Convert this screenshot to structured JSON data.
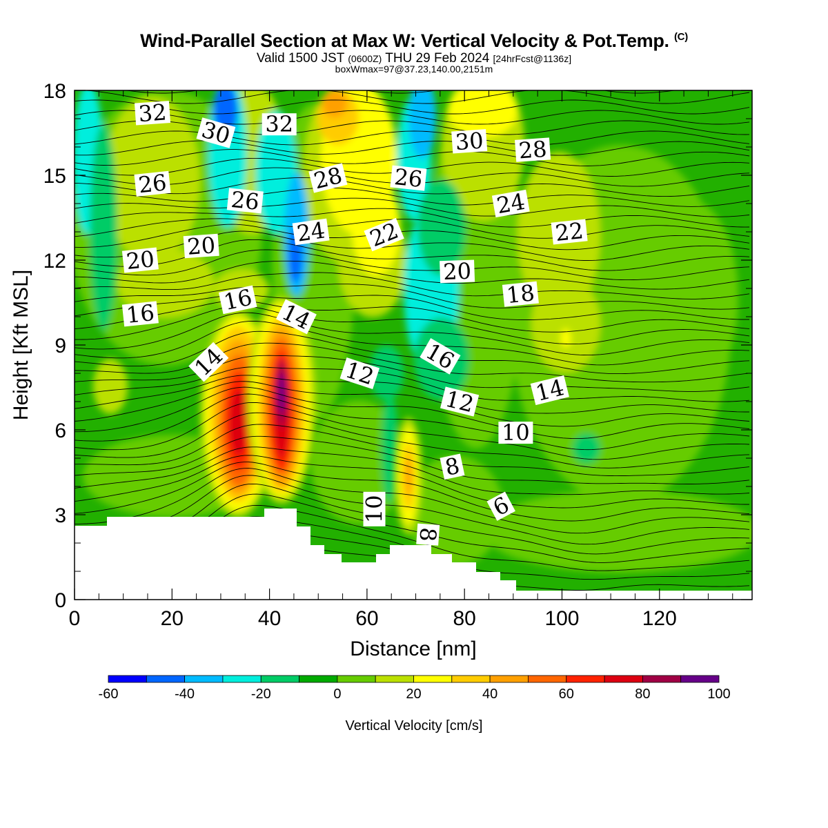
{
  "header": {
    "title": "Wind-Parallel Section at Max W: Vertical Velocity & Pot.Temp.",
    "title_mark": "(C)",
    "valid_prefix": "Valid 1500 JST",
    "valid_utc": "(0600Z)",
    "valid_date": "THU 29 Feb 2024",
    "forecast": "[24hrFcst@1136z]",
    "boxwmax": "boxWmax=97@37.23,140.00,2151m"
  },
  "chart_data": {
    "type": "heatmap",
    "xlabel": "Distance [nm]",
    "ylabel": "Height [Kft MSL]",
    "xlim": [
      0,
      139
    ],
    "ylim": [
      0,
      18
    ],
    "x_ticks": [
      0,
      20,
      40,
      60,
      80,
      100,
      120
    ],
    "y_ticks": [
      0,
      3,
      6,
      9,
      12,
      15,
      18
    ],
    "grid": false,
    "colorbar": {
      "label": "Vertical Velocity [cm/s]",
      "placement": "bottom",
      "tick_labels": [
        "-60",
        "-40",
        "-20",
        "0",
        "20",
        "40",
        "60",
        "80",
        "100"
      ],
      "levels": [
        -60,
        -50,
        -40,
        -30,
        -20,
        -10,
        0,
        10,
        20,
        30,
        40,
        50,
        60,
        70,
        80,
        90,
        100
      ],
      "colors": [
        "#0000ff",
        "#0066ff",
        "#00bbff",
        "#00eedd",
        "#00cc66",
        "#00aa00",
        "#66cc00",
        "#bbe000",
        "#ffff00",
        "#ffcc00",
        "#ffa000",
        "#ff6600",
        "#ff2200",
        "#dd0011",
        "#a00044",
        "#660088"
      ]
    },
    "theta_labels": [
      {
        "text": "32",
        "x": 16,
        "y": 17.2,
        "angle": -4
      },
      {
        "text": "30",
        "x": 29,
        "y": 16.5,
        "angle": 16
      },
      {
        "text": "32",
        "x": 42,
        "y": 16.8,
        "angle": 0
      },
      {
        "text": "30",
        "x": 81,
        "y": 16.2,
        "angle": -4
      },
      {
        "text": "28",
        "x": 94,
        "y": 15.9,
        "angle": -4
      },
      {
        "text": "26",
        "x": 16,
        "y": 14.7,
        "angle": -6
      },
      {
        "text": "26",
        "x": 35,
        "y": 14.1,
        "angle": 6
      },
      {
        "text": "28",
        "x": 52,
        "y": 14.9,
        "angle": -14
      },
      {
        "text": "26",
        "x": 68.5,
        "y": 14.9,
        "angle": 6
      },
      {
        "text": "24",
        "x": 89.5,
        "y": 14.0,
        "angle": -10
      },
      {
        "text": "24",
        "x": 48.5,
        "y": 13.0,
        "angle": -8
      },
      {
        "text": "22",
        "x": 63.5,
        "y": 12.9,
        "angle": -22
      },
      {
        "text": "22",
        "x": 101.5,
        "y": 13.0,
        "angle": -6
      },
      {
        "text": "20",
        "x": 13.5,
        "y": 12.0,
        "angle": -6
      },
      {
        "text": "20",
        "x": 26,
        "y": 12.5,
        "angle": -4
      },
      {
        "text": "20",
        "x": 78.5,
        "y": 11.6,
        "angle": -2
      },
      {
        "text": "16",
        "x": 33.5,
        "y": 10.6,
        "angle": -12
      },
      {
        "text": "18",
        "x": 91.5,
        "y": 10.8,
        "angle": -6
      },
      {
        "text": "16",
        "x": 13.5,
        "y": 10.1,
        "angle": -6
      },
      {
        "text": "14",
        "x": 45.5,
        "y": 10.0,
        "angle": 26
      },
      {
        "text": "14",
        "x": 27.5,
        "y": 8.4,
        "angle": -44
      },
      {
        "text": "16",
        "x": 75,
        "y": 8.6,
        "angle": 30
      },
      {
        "text": "12",
        "x": 58.5,
        "y": 8.0,
        "angle": 18
      },
      {
        "text": "12",
        "x": 79,
        "y": 7.0,
        "angle": 14
      },
      {
        "text": "14",
        "x": 97.5,
        "y": 7.4,
        "angle": -14
      },
      {
        "text": "10",
        "x": 90.5,
        "y": 5.9,
        "angle": 0
      },
      {
        "text": "8",
        "x": 77.5,
        "y": 4.7,
        "angle": -12
      },
      {
        "text": "6",
        "x": 87.5,
        "y": 3.3,
        "angle": -28
      },
      {
        "text": "10",
        "x": 61.5,
        "y": 3.2,
        "angle": -90
      },
      {
        "text": "8",
        "x": 72.5,
        "y": 2.3,
        "angle": 94
      }
    ]
  }
}
